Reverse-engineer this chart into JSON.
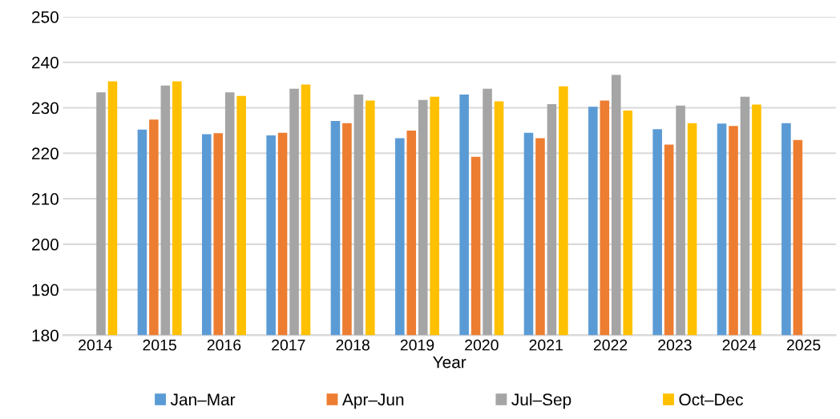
{
  "chart_data": {
    "type": "bar",
    "xlabel": "Year",
    "categories": [
      "2014",
      "2015",
      "2016",
      "2017",
      "2018",
      "2019",
      "2020",
      "2021",
      "2022",
      "2023",
      "2024",
      "2025"
    ],
    "series": [
      {
        "name": "Jan–Mar",
        "color": "#5b9bd5",
        "values": [
          null,
          225.2,
          224.2,
          223.9,
          227.1,
          223.3,
          232.9,
          224.5,
          230.2,
          225.3,
          226.5,
          226.6
        ]
      },
      {
        "name": "Apr–Jun",
        "color": "#ed7d31",
        "values": [
          null,
          227.4,
          224.4,
          224.5,
          226.6,
          225.0,
          219.2,
          223.3,
          231.6,
          221.9,
          226.0,
          222.9
        ]
      },
      {
        "name": "Jul–Sep",
        "color": "#a5a5a5",
        "values": [
          233.4,
          234.9,
          233.4,
          234.2,
          232.9,
          231.7,
          234.2,
          230.8,
          237.2,
          230.5,
          232.4,
          null
        ]
      },
      {
        "name": "Oct–Dec",
        "color": "#ffc000",
        "values": [
          235.8,
          235.8,
          232.6,
          235.1,
          231.6,
          232.4,
          231.4,
          234.7,
          229.4,
          226.6,
          230.7,
          null
        ]
      }
    ],
    "ylim": [
      180,
      250
    ],
    "yticks": [
      180,
      190,
      200,
      210,
      220,
      230,
      240,
      250
    ],
    "grid": "y",
    "legend": "bottom"
  }
}
